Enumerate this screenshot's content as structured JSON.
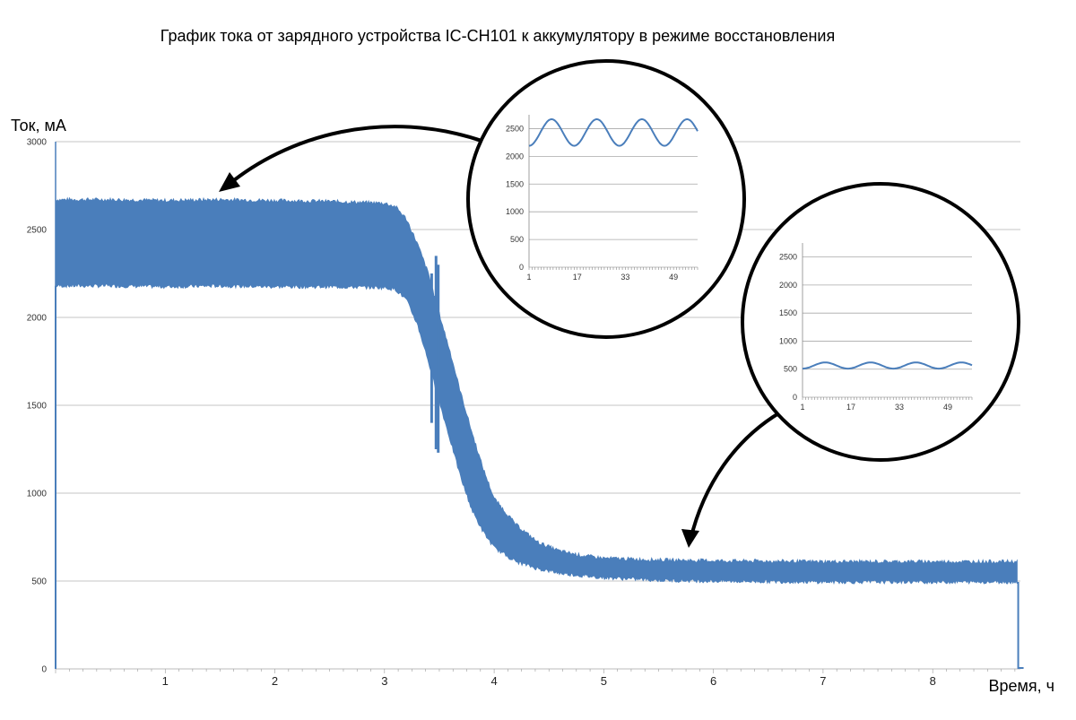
{
  "chart_data": [
    {
      "type": "area",
      "title": "График тока от зарядного устройства IC-CH101 к аккумулятору в режиме восстановления",
      "ylabel": "Ток, мА",
      "xlabel": "Время, ч",
      "xlim": [
        0,
        8.8
      ],
      "ylim": [
        0,
        3000
      ],
      "x_ticks": [
        1,
        2,
        3,
        4,
        5,
        6,
        7,
        8
      ],
      "y_ticks": [
        0,
        500,
        1000,
        1500,
        2000,
        2500,
        3000
      ],
      "grid": true,
      "series": [
        {
          "color": "#4a7ebb",
          "envelope": {
            "x": [
              0.0,
              0.5,
              1.0,
              1.5,
              2.0,
              2.5,
              3.0,
              3.1,
              3.2,
              3.3,
              3.4,
              3.5,
              3.6,
              3.7,
              3.8,
              3.9,
              4.0,
              4.2,
              4.4,
              4.6,
              4.8,
              5.0,
              5.5,
              6.0,
              7.0,
              8.0,
              8.78
            ],
            "upper": [
              2670,
              2670,
              2665,
              2670,
              2665,
              2660,
              2650,
              2630,
              2560,
              2420,
              2250,
              2020,
              1800,
              1560,
              1340,
              1140,
              970,
              820,
              720,
              670,
              645,
              630,
              620,
              615,
              610,
              610,
              610
            ],
            "lower": [
              2180,
              2180,
              2175,
              2180,
              2175,
              2175,
              2170,
              2160,
              2100,
              1960,
              1750,
              1520,
              1300,
              1080,
              900,
              780,
              690,
              610,
              570,
              545,
              530,
              520,
              505,
              500,
              495,
              495,
              495
            ]
          },
          "spikes": [
            {
              "x": 3.43,
              "min": 1400,
              "max": 2250
            },
            {
              "x": 3.47,
              "min": 1250,
              "max": 2350
            },
            {
              "x": 3.49,
              "min": 1230,
              "max": 2300
            }
          ]
        }
      ]
    },
    {
      "type": "line",
      "inset": "upper",
      "ylim": [
        0,
        2750
      ],
      "y_ticks": [
        0,
        500,
        1000,
        1500,
        2000,
        2500
      ],
      "x_ticks": [
        1,
        17,
        33,
        49
      ],
      "xlim": [
        1,
        57
      ],
      "period": 15,
      "mean": 2430,
      "amplitude": 240,
      "color": "#4a7ebb"
    },
    {
      "type": "line",
      "inset": "lower",
      "ylim": [
        0,
        2750
      ],
      "y_ticks": [
        0,
        500,
        1000,
        1500,
        2000,
        2500
      ],
      "x_ticks": [
        1,
        17,
        33,
        49
      ],
      "xlim": [
        1,
        57
      ],
      "period": 15,
      "mean": 565,
      "amplitude": 55,
      "color": "#4a7ebb"
    }
  ]
}
